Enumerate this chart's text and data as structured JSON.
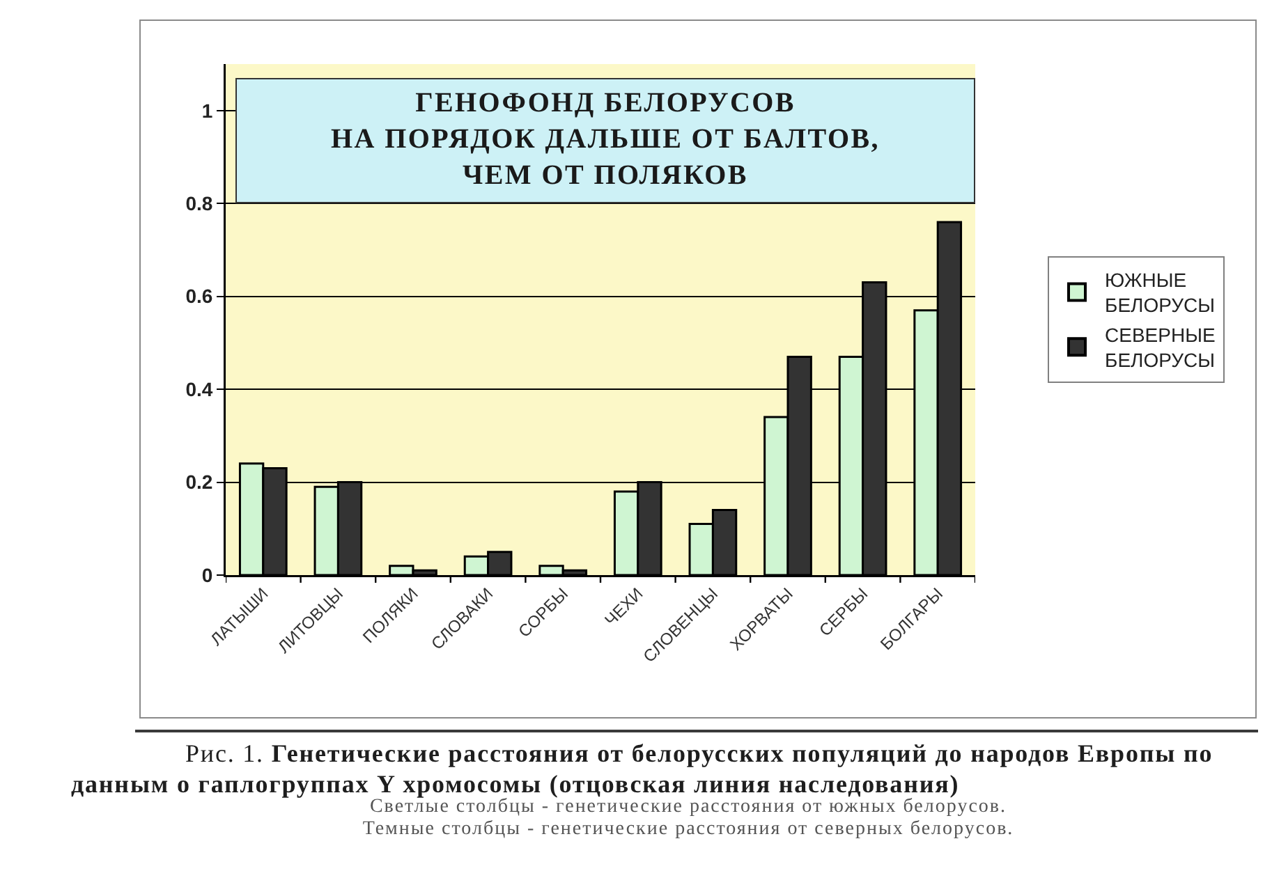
{
  "chart_data": {
    "type": "bar",
    "title": "ГЕНОФОНД БЕЛОРУСОВ\nНА ПОРЯДОК ДАЛЬШЕ ОТ БАЛТОВ,\nЧЕМ ОТ ПОЛЯКОВ",
    "categories": [
      "ЛАТЫШИ",
      "ЛИТОВЦЫ",
      "ПОЛЯКИ",
      "СЛОВАКИ",
      "СОРБЫ",
      "ЧЕХИ",
      "СЛОВЕНЦЫ",
      "ХОРВАТЫ",
      "СЕРБЫ",
      "БОЛГАРЫ"
    ],
    "series": [
      {
        "name": "ЮЖНЫЕ\nБЕЛОРУСЫ",
        "color": "#cff5d2",
        "values": [
          0.24,
          0.19,
          0.02,
          0.04,
          0.02,
          0.18,
          0.11,
          0.34,
          0.47,
          0.57
        ]
      },
      {
        "name": "СЕВЕРНЫЕ\nБЕЛОРУСЫ",
        "color": "#333333",
        "values": [
          0.23,
          0.2,
          0.01,
          0.05,
          0.01,
          0.2,
          0.14,
          0.47,
          0.63,
          0.76
        ]
      }
    ],
    "ylim": [
      0,
      1.1
    ],
    "yticks": [
      0,
      0.2,
      0.4,
      0.6,
      0.8,
      1
    ],
    "grid": "y",
    "legend": "right",
    "annotations": [
      "Рис. 1.",
      "Генетические расстояния от белорусских популяций до народов Европы по данным о гаплогруппах Y хромосомы (отцовская линия наследования)",
      "Светлые столбцы - генетические расстояния от южных белорусов.",
      "Темные столбцы - генетические расстояния от северных белорусов."
    ]
  }
}
